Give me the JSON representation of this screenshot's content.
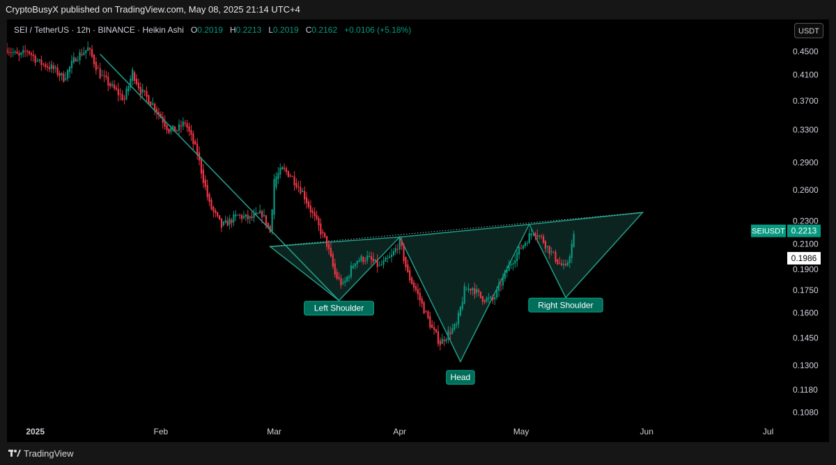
{
  "publisher": {
    "text": "CryptoBusyX published on TradingView.com, May 08, 2025 21:14 UTC+4"
  },
  "header": {
    "symbol": "SEI / TetherUS · 12h · BINANCE · Heikin Ashi",
    "open_label": "O",
    "open": "0.2019",
    "high_label": "H",
    "high": "0.2213",
    "low_label": "L",
    "low": "0.2019",
    "close_label": "C",
    "close": "0.2162",
    "change": "+0.0106 (+5.18%)"
  },
  "currency_button": "USDT",
  "footer": {
    "brand": "TradingView",
    "logo_icon": "tradingview-logo-icon"
  },
  "colors": {
    "up": "#089981",
    "down": "#f23645",
    "pattern_line": "#1f9e8a",
    "pattern_fill": "#0e2a24",
    "background": "#000000"
  },
  "chart_data": {
    "type": "candlestick",
    "scale": "log",
    "y_ticks": [
      "0.4500",
      "0.4100",
      "0.3700",
      "0.3300",
      "0.2900",
      "0.2600",
      "0.2300",
      "0.2100",
      "0.1900",
      "0.1750",
      "0.1600",
      "0.1450",
      "0.1300",
      "0.1180",
      "0.1080"
    ],
    "x_ticks": [
      {
        "label": "2025",
        "date": "2025-01-01",
        "bold": true
      },
      {
        "label": "Feb",
        "date": "2025-02-01"
      },
      {
        "label": "Mar",
        "date": "2025-03-01"
      },
      {
        "label": "Apr",
        "date": "2025-04-01"
      },
      {
        "label": "May",
        "date": "2025-05-01"
      },
      {
        "label": "Jun",
        "date": "2025-06-01"
      },
      {
        "label": "Jul",
        "date": "2025-07-01"
      }
    ],
    "x_range": [
      "2024-12-25",
      "2025-07-04"
    ],
    "y_range": [
      0.104,
      0.47
    ],
    "price_tags": [
      {
        "label": "SEIUSDT",
        "value": "0.2213",
        "price": 0.2213,
        "style": "green"
      },
      {
        "label": "",
        "value": "0.1986",
        "price": 0.1986,
        "style": "white"
      }
    ],
    "price_path": [
      [
        "2024-12-25",
        0.455
      ],
      [
        "2024-12-28",
        0.44
      ],
      [
        "2024-12-30",
        0.452
      ],
      [
        "2025-01-02",
        0.43
      ],
      [
        "2025-01-05",
        0.422
      ],
      [
        "2025-01-08",
        0.405
      ],
      [
        "2025-01-11",
        0.44
      ],
      [
        "2025-01-14",
        0.455
      ],
      [
        "2025-01-17",
        0.41
      ],
      [
        "2025-01-20",
        0.39
      ],
      [
        "2025-01-23",
        0.372
      ],
      [
        "2025-01-25",
        0.415
      ],
      [
        "2025-01-27",
        0.385
      ],
      [
        "2025-01-30",
        0.365
      ],
      [
        "2025-02-03",
        0.33
      ],
      [
        "2025-02-05",
        0.33
      ],
      [
        "2025-02-07",
        0.34
      ],
      [
        "2025-02-10",
        0.3
      ],
      [
        "2025-02-13",
        0.245
      ],
      [
        "2025-02-16",
        0.225
      ],
      [
        "2025-02-20",
        0.235
      ],
      [
        "2025-02-23",
        0.232
      ],
      [
        "2025-02-26",
        0.237
      ],
      [
        "2025-02-28",
        0.22
      ],
      [
        "2025-03-01",
        0.272
      ],
      [
        "2025-03-03",
        0.282
      ],
      [
        "2025-03-05",
        0.276
      ],
      [
        "2025-03-08",
        0.258
      ],
      [
        "2025-03-11",
        0.232
      ],
      [
        "2025-03-14",
        0.21
      ],
      [
        "2025-03-16",
        0.186
      ],
      [
        "2025-03-18",
        0.178
      ],
      [
        "2025-03-21",
        0.197
      ],
      [
        "2025-03-24",
        0.199
      ],
      [
        "2025-03-27",
        0.192
      ],
      [
        "2025-03-30",
        0.2
      ],
      [
        "2025-04-01",
        0.212
      ],
      [
        "2025-04-03",
        0.186
      ],
      [
        "2025-04-05",
        0.175
      ],
      [
        "2025-04-07",
        0.162
      ],
      [
        "2025-04-09",
        0.15
      ],
      [
        "2025-04-11",
        0.142
      ],
      [
        "2025-04-13",
        0.148
      ],
      [
        "2025-04-15",
        0.152
      ],
      [
        "2025-04-17",
        0.175
      ],
      [
        "2025-04-19",
        0.177
      ],
      [
        "2025-04-21",
        0.17
      ],
      [
        "2025-04-24",
        0.168
      ],
      [
        "2025-04-26",
        0.18
      ],
      [
        "2025-04-28",
        0.193
      ],
      [
        "2025-04-30",
        0.203
      ],
      [
        "2025-05-02",
        0.212
      ],
      [
        "2025-05-04",
        0.222
      ],
      [
        "2025-05-06",
        0.215
      ],
      [
        "2025-05-08",
        0.205
      ],
      [
        "2025-05-10",
        0.196
      ],
      [
        "2025-05-12",
        0.19
      ],
      [
        "2025-05-14",
        0.216
      ]
    ],
    "pattern": {
      "downtrend_line": [
        [
          "2025-01-17",
          0.445
        ],
        [
          "2025-03-17",
          0.168
        ]
      ],
      "neckline": [
        [
          "2025-02-28",
          0.208
        ],
        [
          "2025-05-31",
          0.238
        ]
      ],
      "left_shoulder": [
        [
          "2025-02-28",
          0.208
        ],
        [
          "2025-03-17",
          0.168
        ],
        [
          "2025-04-01",
          0.216
        ]
      ],
      "head": [
        [
          "2025-04-01",
          0.216
        ],
        [
          "2025-04-16",
          0.132
        ],
        [
          "2025-05-03",
          0.227
        ]
      ],
      "right_shoulder": [
        [
          "2025-05-03",
          0.227
        ],
        [
          "2025-05-12",
          0.17
        ],
        [
          "2025-05-31",
          0.238
        ]
      ],
      "labels": [
        {
          "text": "Left Shoulder",
          "date": "2025-03-17",
          "price": 0.163
        },
        {
          "text": "Head",
          "date": "2025-04-16",
          "price": 0.124
        },
        {
          "text": "Right Shoulder",
          "date": "2025-05-12",
          "price": 0.165
        }
      ]
    }
  }
}
